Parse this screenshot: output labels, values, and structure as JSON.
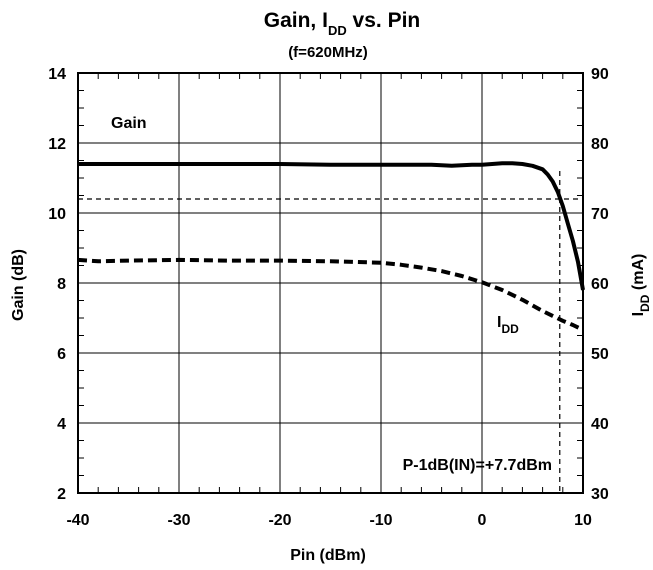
{
  "chart_data": {
    "type": "line",
    "title_main": "Gain, I",
    "title_sub": "DD",
    "title_rest": " vs. Pin",
    "subtitle": "(f=620MHz)",
    "xlabel": "Pin (dBm)",
    "ylabel_left": "Gain (dB)",
    "ylabel_right_main": "I",
    "ylabel_right_sub": "DD",
    "ylabel_right_rest": " (mA)",
    "xlim": [
      -40,
      10
    ],
    "ylim_left": [
      2,
      14
    ],
    "ylim_right": [
      30,
      90
    ],
    "grid": true,
    "x_ticks": [
      "-40",
      "-30",
      "-20",
      "-10",
      "0",
      "10"
    ],
    "x_tick_values": [
      -40,
      -30,
      -20,
      -10,
      0,
      10
    ],
    "y_left_ticks": [
      "2",
      "4",
      "6",
      "8",
      "10",
      "12",
      "14"
    ],
    "y_left_tick_values": [
      2,
      4,
      6,
      8,
      10,
      12,
      14
    ],
    "y_right_ticks": [
      "30",
      "40",
      "50",
      "60",
      "70",
      "80",
      "90"
    ],
    "y_right_tick_values": [
      30,
      40,
      50,
      60,
      70,
      80,
      90
    ],
    "series": [
      {
        "name": "Gain",
        "axis": "left",
        "style": "solid",
        "x": [
          -40,
          -35,
          -30,
          -25,
          -20,
          -15,
          -10,
          -5,
          -3,
          -1,
          0,
          1,
          2,
          3,
          4,
          5,
          6,
          6.5,
          7,
          7.5,
          8,
          8.5,
          9,
          9.5,
          10
        ],
        "y": [
          11.4,
          11.4,
          11.4,
          11.4,
          11.4,
          11.38,
          11.38,
          11.38,
          11.35,
          11.38,
          11.38,
          11.4,
          11.42,
          11.42,
          11.4,
          11.35,
          11.25,
          11.1,
          10.9,
          10.6,
          10.2,
          9.7,
          9.2,
          8.6,
          7.8
        ]
      },
      {
        "name": "IDD",
        "axis": "right",
        "style": "dashed",
        "x": [
          -40,
          -38,
          -35,
          -30,
          -25,
          -20,
          -15,
          -10,
          -8,
          -6,
          -4,
          -2,
          0,
          2,
          4,
          5,
          6,
          7,
          8,
          9,
          10
        ],
        "y": [
          63.3,
          63.1,
          63.2,
          63.3,
          63.2,
          63.2,
          63.1,
          62.9,
          62.6,
          62.2,
          61.7,
          61.0,
          60.1,
          59.0,
          57.6,
          56.8,
          56.0,
          55.3,
          54.6,
          54.0,
          53.3
        ]
      }
    ],
    "labels": {
      "gain": "Gain",
      "idd_main": "I",
      "idd_sub": "DD",
      "p1db": "P-1dB(IN)=+7.7dBm"
    },
    "reference_lines": {
      "gain_minus_1db": 10.4,
      "p1db_x": 7.7
    },
    "colors": {
      "line": "#000000",
      "background": "#ffffff"
    }
  }
}
